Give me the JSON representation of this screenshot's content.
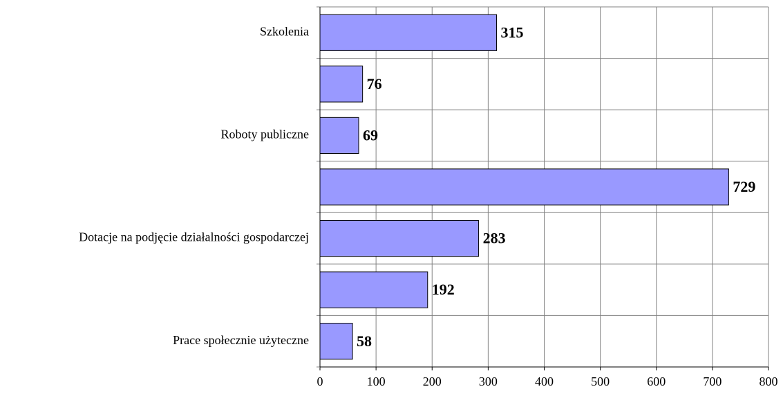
{
  "chart_data": {
    "type": "bar",
    "orientation": "horizontal",
    "categories": [
      "Szkolenia",
      null,
      "Roboty publiczne",
      null,
      "Dotacje na podjęcie działalności gospodarczej",
      null,
      "Prace społecznie użyteczne"
    ],
    "values": [
      315,
      76,
      69,
      729,
      283,
      192,
      58
    ],
    "color": "#9999ff",
    "xlim": [
      0,
      800
    ],
    "xticks": [
      0,
      100,
      200,
      300,
      400,
      500,
      600,
      700,
      800
    ],
    "grid": true
  }
}
